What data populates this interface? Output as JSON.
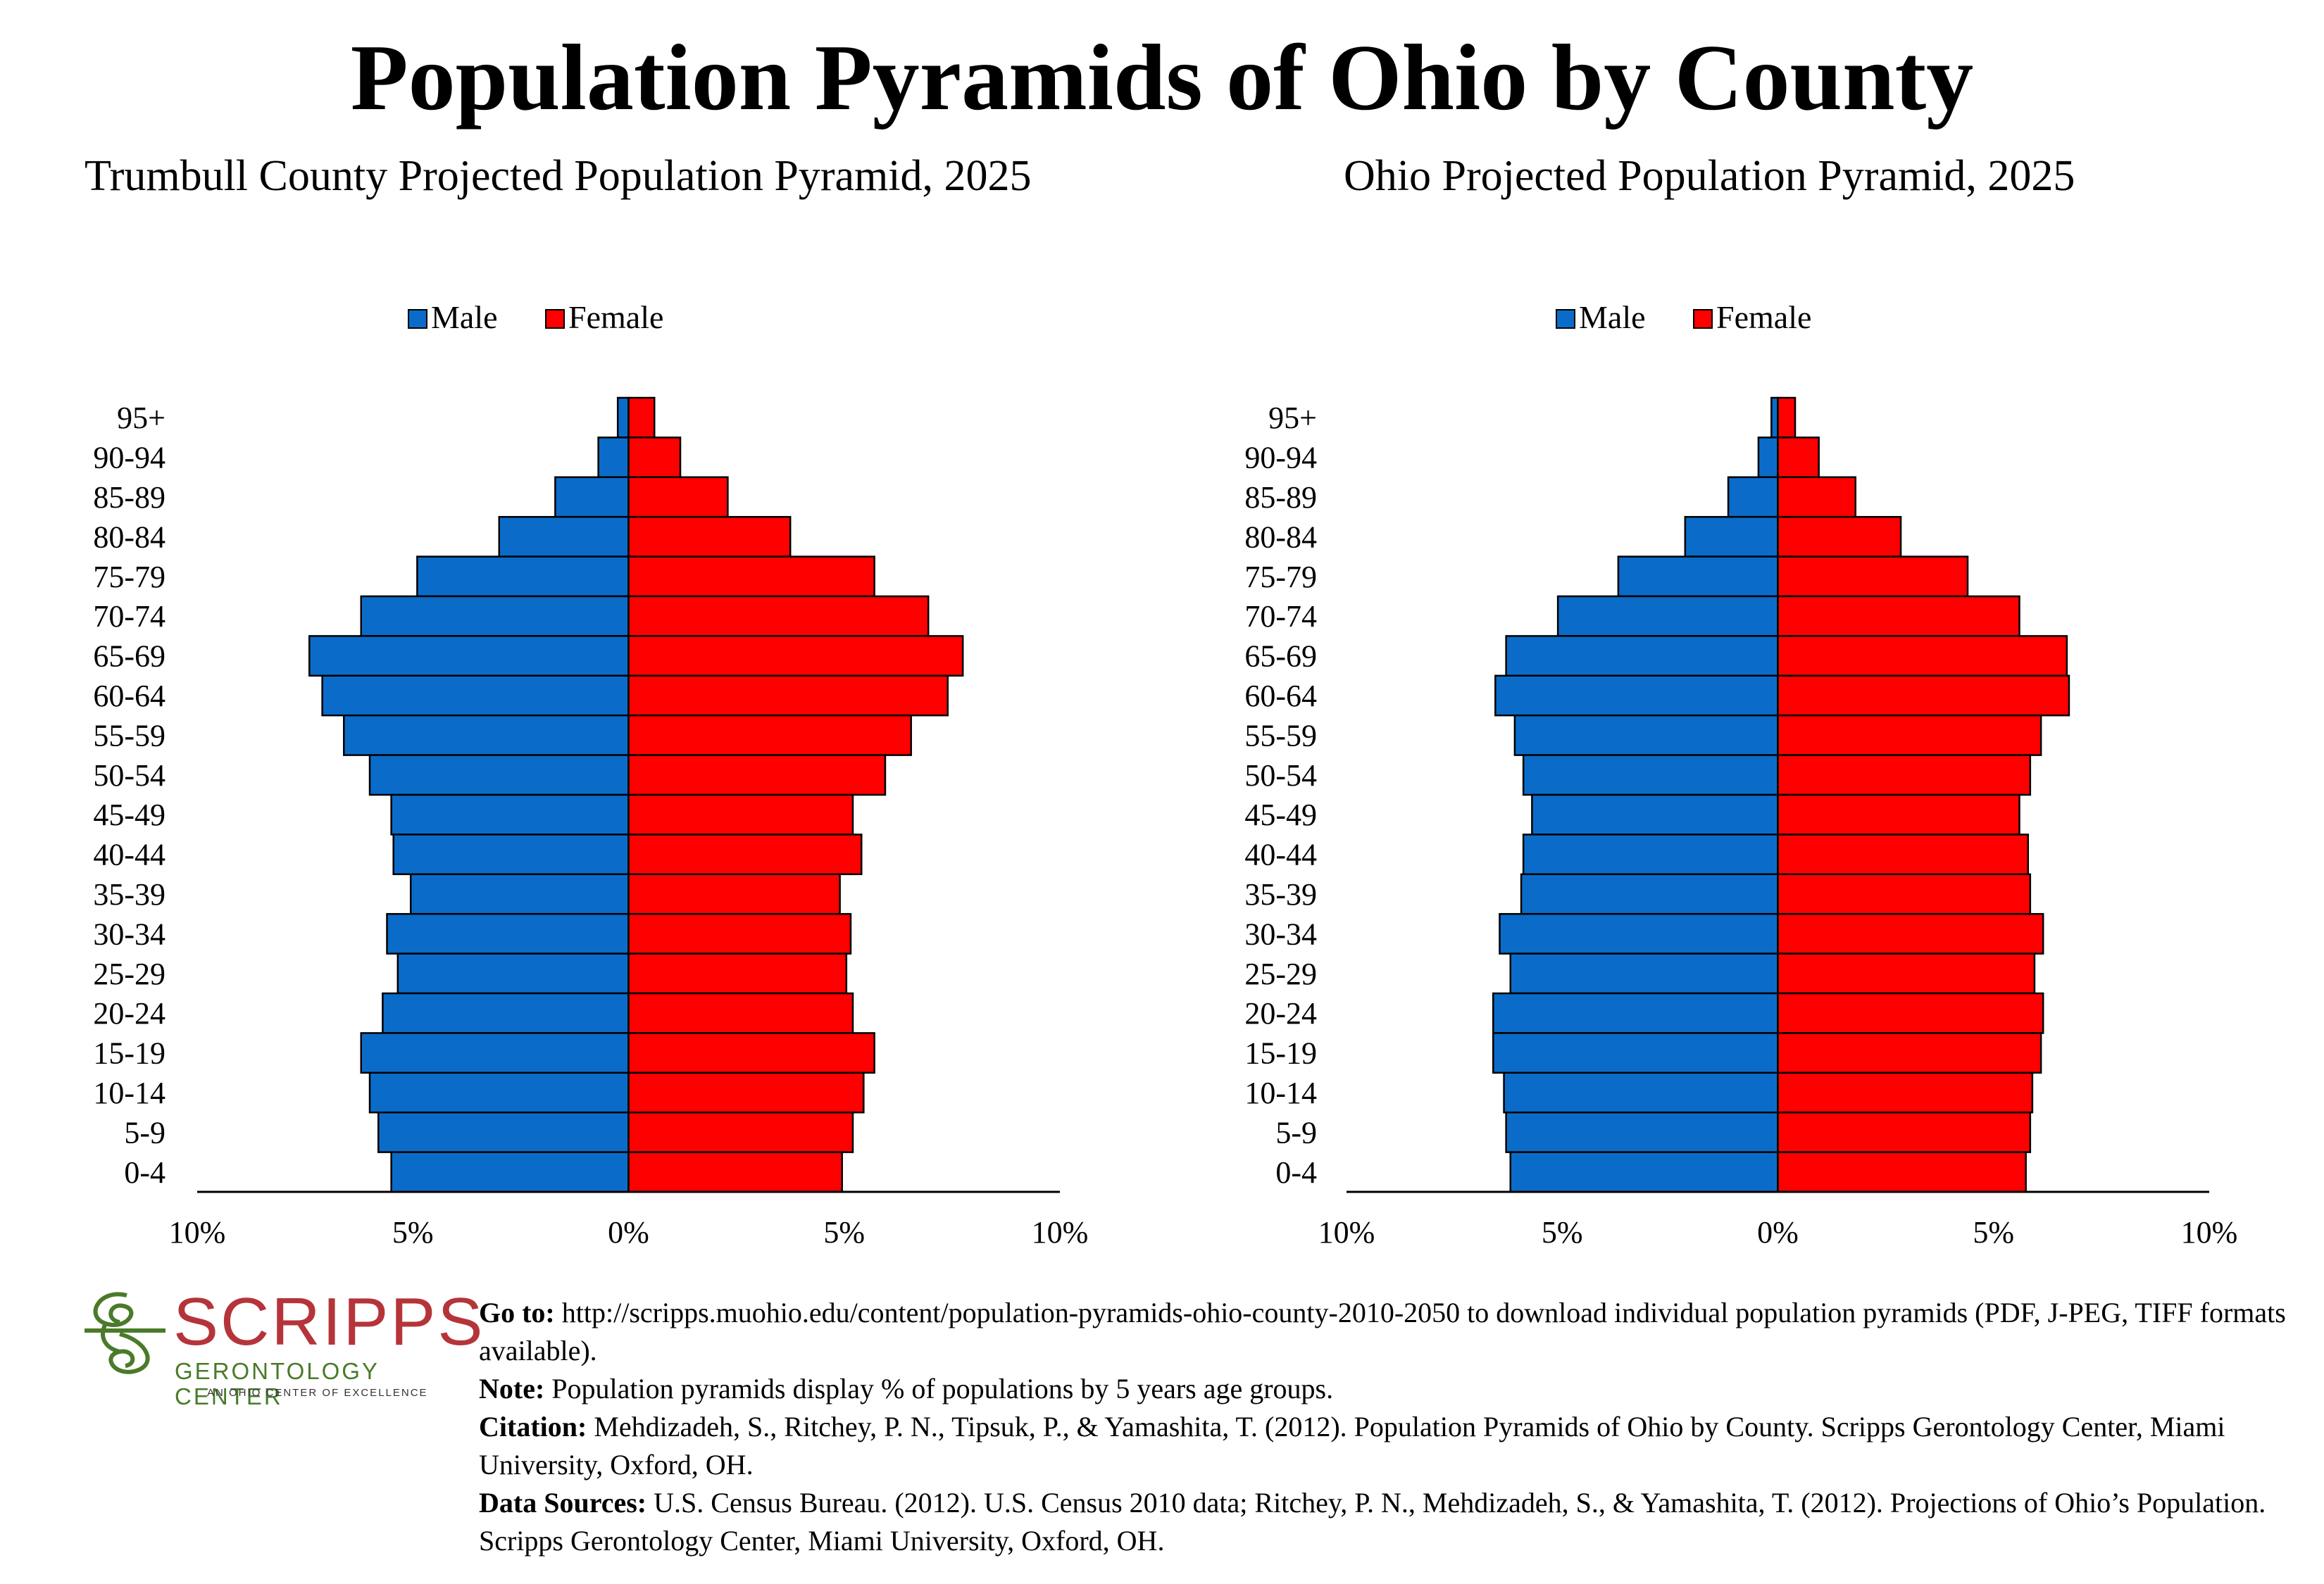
{
  "main_title": "Population Pyramids of Ohio by County",
  "legend": {
    "male": "Male",
    "female": "Female"
  },
  "colors": {
    "male": "#0a6cc8",
    "female": "#fe0000",
    "border": "#000000"
  },
  "chart_data": [
    {
      "type": "bar",
      "orientation": "horizontal-pyramid",
      "title": "Trumbull County Projected Population Pyramid, 2025",
      "categories": [
        "95+",
        "90-94",
        "85-89",
        "80-84",
        "75-79",
        "70-74",
        "65-69",
        "60-64",
        "55-59",
        "50-54",
        "45-49",
        "40-44",
        "35-39",
        "30-34",
        "25-29",
        "20-24",
        "15-19",
        "10-14",
        "5-9",
        "0-4"
      ],
      "series": [
        {
          "name": "Male",
          "values": [
            0.25,
            0.7,
            1.7,
            3.0,
            4.9,
            6.2,
            7.4,
            7.1,
            6.6,
            6.0,
            5.5,
            5.45,
            5.05,
            5.6,
            5.35,
            5.7,
            6.2,
            6.0,
            5.8,
            5.5
          ]
        },
        {
          "name": "Female",
          "values": [
            0.6,
            1.2,
            2.3,
            3.75,
            5.7,
            6.95,
            7.75,
            7.4,
            6.55,
            5.95,
            5.2,
            5.4,
            4.9,
            5.15,
            5.05,
            5.2,
            5.7,
            5.45,
            5.2,
            4.95
          ]
        }
      ],
      "xlim": [
        -10,
        10
      ],
      "xticks": [
        "10%",
        "5%",
        "0%",
        "5%",
        "10%"
      ],
      "legend_position": "top-center"
    },
    {
      "type": "bar",
      "orientation": "horizontal-pyramid",
      "title": "Ohio Projected Population Pyramid, 2025",
      "categories": [
        "95+",
        "90-94",
        "85-89",
        "80-84",
        "75-79",
        "70-74",
        "65-69",
        "60-64",
        "55-59",
        "50-54",
        "45-49",
        "40-44",
        "35-39",
        "30-34",
        "25-29",
        "20-24",
        "15-19",
        "10-14",
        "5-9",
        "0-4"
      ],
      "series": [
        {
          "name": "Male",
          "values": [
            0.15,
            0.45,
            1.15,
            2.15,
            3.7,
            5.1,
            6.3,
            6.55,
            6.1,
            5.9,
            5.7,
            5.9,
            5.95,
            6.45,
            6.2,
            6.6,
            6.6,
            6.35,
            6.3,
            6.2
          ]
        },
        {
          "name": "Female",
          "values": [
            0.4,
            0.95,
            1.8,
            2.85,
            4.4,
            5.6,
            6.7,
            6.75,
            6.1,
            5.85,
            5.6,
            5.8,
            5.85,
            6.15,
            5.95,
            6.15,
            6.1,
            5.9,
            5.85,
            5.75
          ]
        }
      ],
      "xlim": [
        -10,
        10
      ],
      "xticks": [
        "10%",
        "5%",
        "0%",
        "5%",
        "10%"
      ],
      "legend_position": "top-center"
    }
  ],
  "notes": [
    {
      "label": "Go to:",
      "text": " http://scripps.muohio.edu/content/population-pyramids-ohio-county-2010-2050 to download individual population pyramids (PDF, J-PEG, TIFF formats available)."
    },
    {
      "label": "Note:",
      "text": " Population pyramids display % of populations by 5 years age groups."
    },
    {
      "label": "Citation:",
      "text": " Mehdizadeh, S., Ritchey, P. N., Tipsuk, P., & Yamashita, T. (2012). Population Pyramids of Ohio by County. Scripps Gerontology Center, Miami University, Oxford, OH."
    },
    {
      "label": "Data Sources:",
      "text": " U.S. Census Bureau. (2012). U.S. Census 2010 data; Ritchey, P. N., Mehdizadeh, S., & Yamashita, T. (2012). Projections of Ohio’s Population. Scripps Gerontology Center, Miami University, Oxford, OH."
    }
  ],
  "logo": {
    "word": "SCRIPPS",
    "subtitle": "GERONTOLOGY CENTER",
    "tagline": "AN OHIO CENTER OF EXCELLENCE",
    "colors": {
      "word": "#b5343a",
      "mark": "#4a7a2a"
    }
  }
}
